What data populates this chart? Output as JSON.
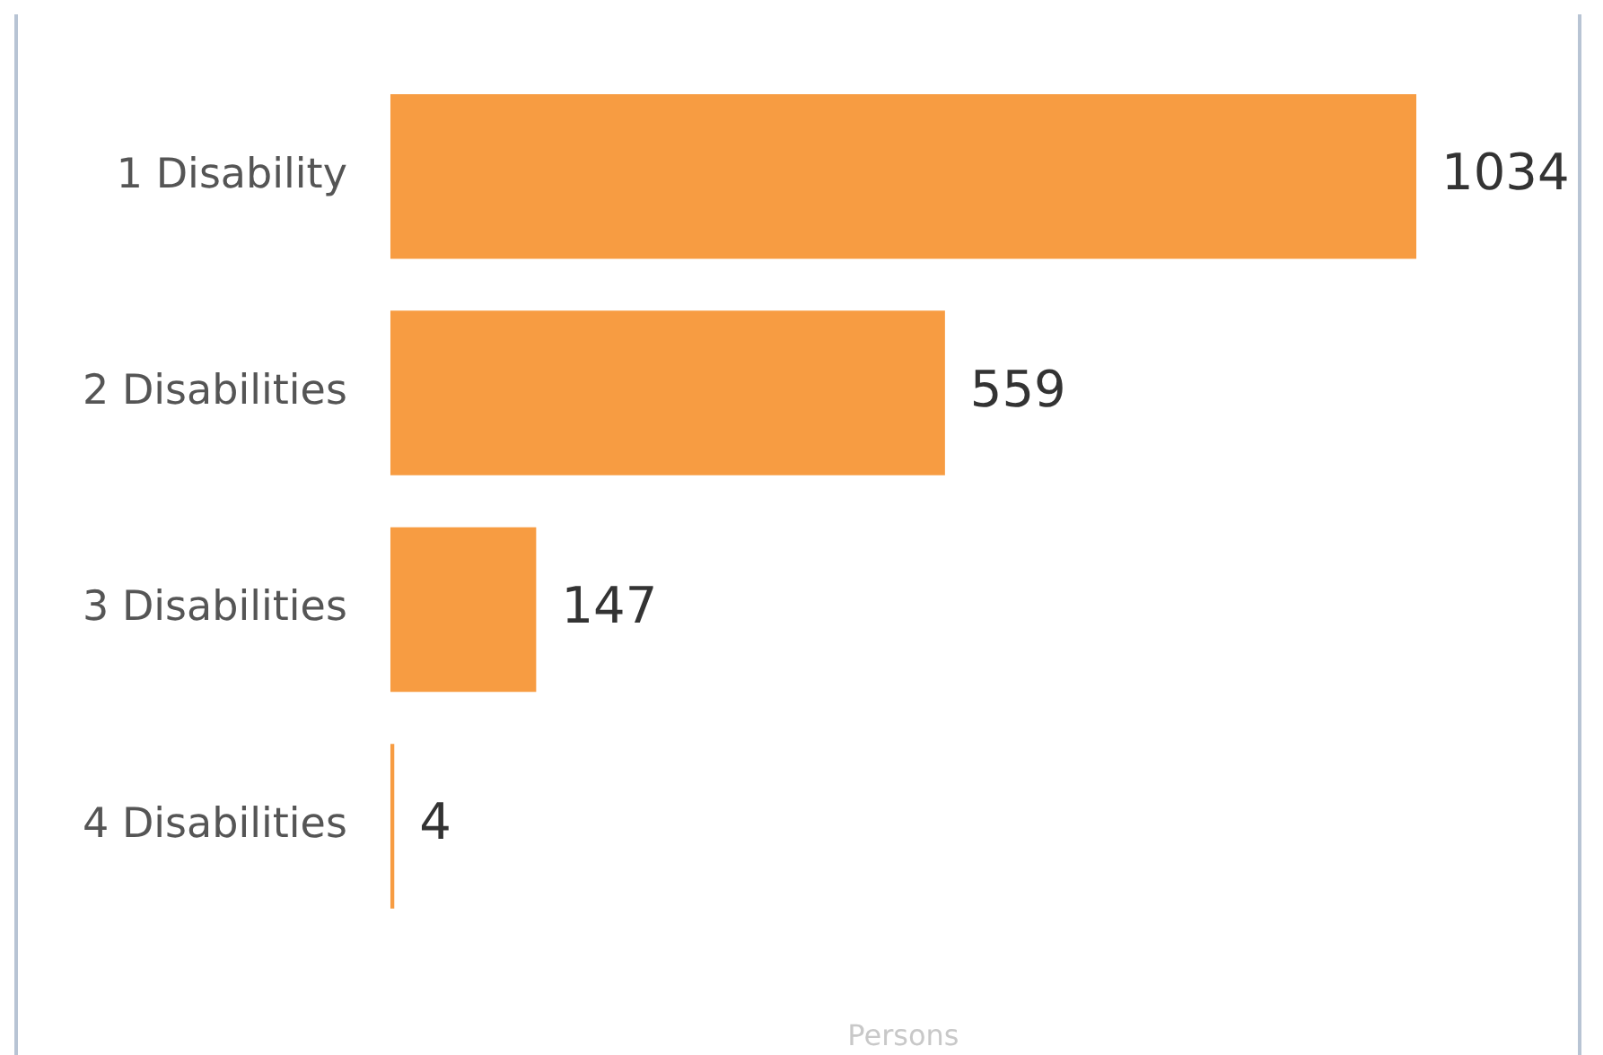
{
  "chart_data": {
    "type": "bar",
    "orientation": "horizontal",
    "categories": [
      "1 Disability",
      "2 Disabilities",
      "3 Disabilities",
      "4 Disabilities"
    ],
    "values": [
      1034,
      559,
      147,
      4
    ],
    "color": "#f79c42",
    "xlabel": "Persons",
    "data_labels": true,
    "tick_labels": "y",
    "grid": false,
    "legend": false
  }
}
